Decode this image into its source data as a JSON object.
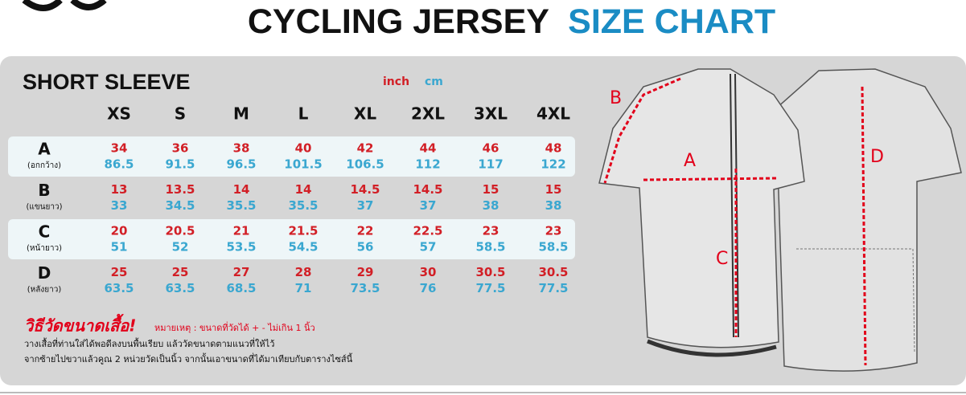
{
  "header": {
    "title_main": "CYCLING JERSEY",
    "title_accent": "SIZE CHART"
  },
  "table": {
    "section": "SHORT SLEEVE",
    "unit_inch": "inch",
    "unit_cm": "cm",
    "sizes": [
      "XS",
      "S",
      "M",
      "L",
      "XL",
      "2XL",
      "3XL",
      "4XL"
    ],
    "rows": [
      {
        "label": "A",
        "sublabel": "(อกกว้าง)",
        "inch": [
          34,
          36,
          38,
          40,
          42,
          44,
          46,
          48
        ],
        "cm": [
          86.5,
          91.5,
          96.5,
          101.5,
          106.5,
          112,
          117,
          122
        ]
      },
      {
        "label": "B",
        "sublabel": "(แขนยาว)",
        "inch": [
          13,
          13.5,
          14,
          14,
          14.5,
          14.5,
          15,
          15
        ],
        "cm": [
          33,
          34.5,
          35.5,
          35.5,
          37,
          37,
          38,
          38
        ]
      },
      {
        "label": "C",
        "sublabel": "(หน้ายาว)",
        "inch": [
          20,
          20.5,
          21,
          21.5,
          22,
          22.5,
          23,
          23
        ],
        "cm": [
          51,
          52,
          53.5,
          54.5,
          56,
          57,
          58.5,
          58.5
        ]
      },
      {
        "label": "D",
        "sublabel": "(หลังยาว)",
        "inch": [
          25,
          25,
          27,
          28,
          29,
          30,
          30.5,
          30.5
        ],
        "cm": [
          63.5,
          63.5,
          68.5,
          71,
          73.5,
          76,
          77.5,
          77.5
        ]
      }
    ]
  },
  "notes": {
    "heading": "วิธีวัดขนาดเสื้อ!",
    "remark": "หมายเหตุ : ขนาดที่วัดได้ + - ไม่เกิน 1 นิ้ว",
    "lines": [
      "วางเสื้อที่ท่านใส่ได้พอดีลงบนพื้นเรียบ แล้ววัดขนาดตามแนวที่ให้ไว้",
      "จากซ้ายไปขวาแล้วคูณ 2 หน่วยวัดเป็นนิ้ว จากนั้นเอาขนาดที่ได้มาเทียบกับตารางไซส์นี้"
    ]
  },
  "diagram": {
    "label_a": "A",
    "label_b": "B",
    "label_c": "C",
    "label_d": "D"
  }
}
